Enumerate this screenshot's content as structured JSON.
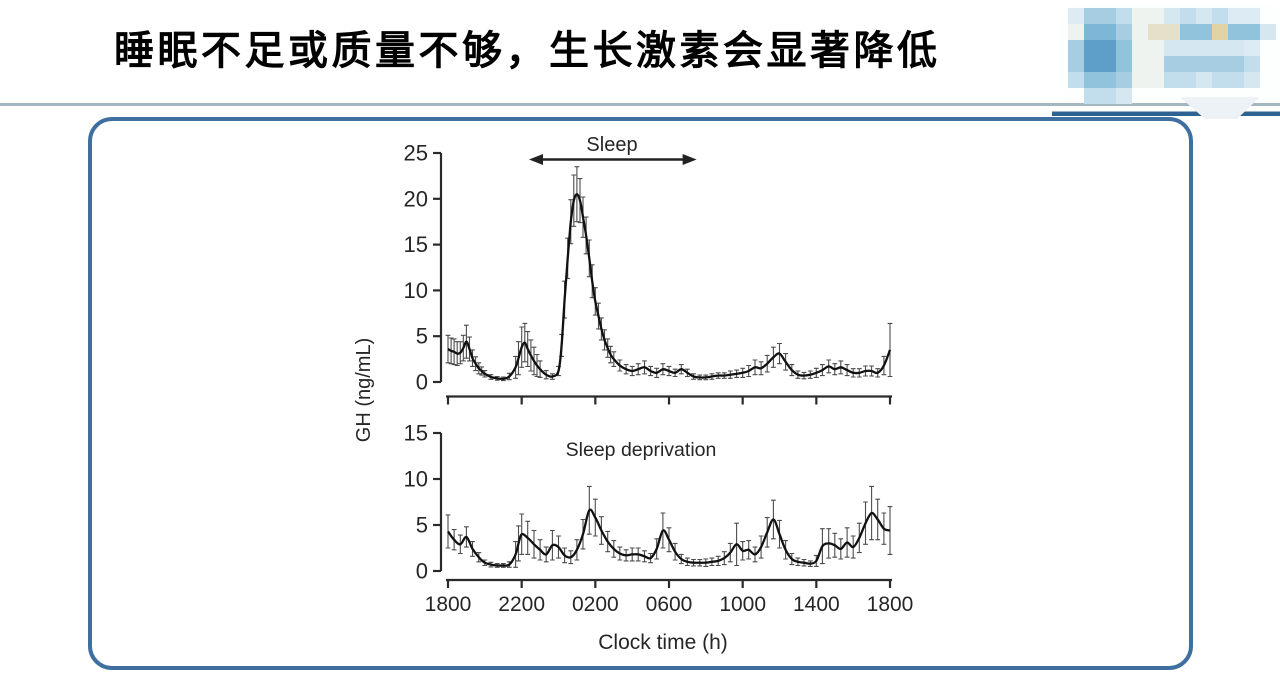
{
  "title": {
    "text": "睡眠不足或质量不够，生长激素会显著降低"
  },
  "chart_data": {
    "type": "line",
    "xlabel": "Clock time (h)",
    "ylabel": "GH (ng/mL)",
    "x_ticks": [
      "1800",
      "2200",
      "0200",
      "0600",
      "1000",
      "1400",
      "1800"
    ],
    "x_hours": [
      0,
      4,
      8,
      12,
      16,
      20,
      24
    ],
    "grid": false,
    "panels": [
      {
        "name": "sleep",
        "annotation": "Sleep",
        "y_ticks": [
          0,
          5,
          10,
          15,
          20,
          25
        ],
        "ylim": [
          0,
          25
        ],
        "arrow_hours": {
          "from": 4.4,
          "to": 13.5
        },
        "points": [
          [
            0,
            3.6,
            1.5
          ],
          [
            0.17,
            3.4,
            1.4
          ],
          [
            0.33,
            3.3,
            1.4
          ],
          [
            0.5,
            3.1,
            1.3
          ],
          [
            0.67,
            3.2,
            1.2
          ],
          [
            0.83,
            3.7,
            1.4
          ],
          [
            1,
            4.4,
            1.8
          ],
          [
            1.17,
            3.6,
            1.3
          ],
          [
            1.33,
            2.6,
            0.9
          ],
          [
            1.5,
            2,
            0.75
          ],
          [
            1.67,
            1.5,
            0.6
          ],
          [
            1.83,
            1.2,
            0.45
          ],
          [
            2,
            0.9,
            0.35
          ],
          [
            2.33,
            0.55,
            0.25
          ],
          [
            2.67,
            0.4,
            0.2
          ],
          [
            3,
            0.35,
            0.2
          ],
          [
            3.33,
            0.6,
            0.35
          ],
          [
            3.67,
            1.6,
            1.2
          ],
          [
            3.83,
            2.6,
            1.8
          ],
          [
            4,
            3.8,
            2.2
          ],
          [
            4.17,
            4.3,
            2.1
          ],
          [
            4.33,
            3.6,
            1.9
          ],
          [
            4.5,
            2.9,
            1.7
          ],
          [
            4.67,
            2.3,
            1.5
          ],
          [
            4.83,
            1.8,
            1.2
          ],
          [
            5,
            1.4,
            0.9
          ],
          [
            5.33,
            0.8,
            0.45
          ],
          [
            5.67,
            0.6,
            0.3
          ],
          [
            6,
            1.2,
            0.5
          ],
          [
            6.17,
            4,
            1.2
          ],
          [
            6.33,
            9,
            2
          ],
          [
            6.5,
            13.5,
            2.2
          ],
          [
            6.67,
            17.5,
            2.4
          ],
          [
            6.83,
            19.8,
            2.8
          ],
          [
            7,
            20.5,
            3
          ],
          [
            7.17,
            19.8,
            2.4
          ],
          [
            7.33,
            18,
            2.2
          ],
          [
            7.5,
            16,
            2
          ],
          [
            7.67,
            13.5,
            2
          ],
          [
            7.83,
            11,
            1.8
          ],
          [
            8,
            8.8,
            1.5
          ],
          [
            8.17,
            7.2,
            1.4
          ],
          [
            8.33,
            5.8,
            1.2
          ],
          [
            8.5,
            4.6,
            1.1
          ],
          [
            8.67,
            3.7,
            1
          ],
          [
            8.83,
            3,
            0.9
          ],
          [
            9,
            2.5,
            0.8
          ],
          [
            9.33,
            1.8,
            0.6
          ],
          [
            9.67,
            1.4,
            0.5
          ],
          [
            10,
            1.2,
            0.5
          ],
          [
            10.33,
            1.4,
            0.6
          ],
          [
            10.67,
            1.6,
            0.7
          ],
          [
            11,
            1.2,
            0.5
          ],
          [
            11.33,
            1,
            0.5
          ],
          [
            11.67,
            1.4,
            0.6
          ],
          [
            12,
            1.2,
            0.5
          ],
          [
            12.33,
            1,
            0.4
          ],
          [
            12.67,
            1.4,
            0.5
          ],
          [
            13,
            1,
            0.4
          ],
          [
            13.33,
            0.6,
            0.3
          ],
          [
            13.67,
            0.5,
            0.25
          ],
          [
            14,
            0.5,
            0.25
          ],
          [
            14.33,
            0.6,
            0.3
          ],
          [
            14.67,
            0.7,
            0.3
          ],
          [
            15,
            0.7,
            0.3
          ],
          [
            15.33,
            0.8,
            0.4
          ],
          [
            15.67,
            0.9,
            0.4
          ],
          [
            16,
            1,
            0.5
          ],
          [
            16.33,
            1.2,
            0.6
          ],
          [
            16.67,
            1.6,
            0.8
          ],
          [
            17,
            1.5,
            0.7
          ],
          [
            17.33,
            2,
            0.9
          ],
          [
            17.67,
            2.7,
            1.1
          ],
          [
            18,
            3.1,
            1.1
          ],
          [
            18.33,
            2.2,
            0.9
          ],
          [
            18.67,
            1.3,
            0.6
          ],
          [
            19,
            0.8,
            0.4
          ],
          [
            19.33,
            0.7,
            0.35
          ],
          [
            19.67,
            0.8,
            0.4
          ],
          [
            20,
            1,
            0.5
          ],
          [
            20.33,
            1.3,
            0.6
          ],
          [
            20.67,
            1.7,
            0.7
          ],
          [
            21,
            1.4,
            0.6
          ],
          [
            21.33,
            1.6,
            0.7
          ],
          [
            21.67,
            1.3,
            0.6
          ],
          [
            22,
            1,
            0.45
          ],
          [
            22.33,
            1,
            0.45
          ],
          [
            22.67,
            1.2,
            0.55
          ],
          [
            23,
            1.2,
            0.55
          ],
          [
            23.33,
            1,
            0.45
          ],
          [
            23.67,
            1.8,
            1
          ],
          [
            24,
            3.5,
            2.9
          ]
        ]
      },
      {
        "name": "sleep-deprivation",
        "annotation": "Sleep deprivation",
        "y_ticks": [
          0,
          5,
          10,
          15
        ],
        "ylim": [
          0,
          15
        ],
        "points": [
          [
            0,
            4.3,
            1.8
          ],
          [
            0.33,
            3.4,
            1.1
          ],
          [
            0.67,
            2.9,
            1
          ],
          [
            1,
            3.7,
            1.1
          ],
          [
            1.33,
            2.4,
            0.8
          ],
          [
            1.67,
            1.5,
            0.5
          ],
          [
            2,
            0.9,
            0.3
          ],
          [
            2.33,
            0.7,
            0.25
          ],
          [
            2.67,
            0.6,
            0.2
          ],
          [
            3,
            0.6,
            0.2
          ],
          [
            3.33,
            0.7,
            0.3
          ],
          [
            3.67,
            1.8,
            1.4
          ],
          [
            3.83,
            3,
            1.9
          ],
          [
            4,
            4,
            2.2
          ],
          [
            4.33,
            3.6,
            1.8
          ],
          [
            4.67,
            2.9,
            1.5
          ],
          [
            5,
            2.3,
            1.1
          ],
          [
            5.33,
            1.8,
            0.8
          ],
          [
            5.67,
            2.8,
            1.6
          ],
          [
            6,
            2.6,
            1.2
          ],
          [
            6.33,
            1.7,
            0.8
          ],
          [
            6.67,
            1.5,
            0.7
          ],
          [
            7,
            2.3,
            1.1
          ],
          [
            7.33,
            4,
            1.6
          ],
          [
            7.67,
            6.6,
            2.6
          ],
          [
            8,
            5.8,
            2
          ],
          [
            8.33,
            4.4,
            1.5
          ],
          [
            8.67,
            3.2,
            1.1
          ],
          [
            9,
            2.4,
            0.9
          ],
          [
            9.33,
            1.9,
            0.7
          ],
          [
            9.67,
            1.7,
            0.6
          ],
          [
            10,
            1.8,
            0.7
          ],
          [
            10.33,
            1.8,
            0.7
          ],
          [
            10.67,
            1.6,
            0.6
          ],
          [
            11,
            1.4,
            0.5
          ],
          [
            11.33,
            2.4,
            1.1
          ],
          [
            11.67,
            4.4,
            1.9
          ],
          [
            12,
            3.4,
            1.3
          ],
          [
            12.33,
            2.1,
            0.9
          ],
          [
            12.67,
            1.3,
            0.5
          ],
          [
            13,
            1,
            0.4
          ],
          [
            13.33,
            0.9,
            0.35
          ],
          [
            13.67,
            0.9,
            0.35
          ],
          [
            14,
            0.9,
            0.4
          ],
          [
            14.33,
            1,
            0.4
          ],
          [
            14.67,
            1.1,
            0.5
          ],
          [
            15,
            1.4,
            0.7
          ],
          [
            15.33,
            2,
            1
          ],
          [
            15.67,
            2.9,
            2.3
          ],
          [
            16,
            2.2,
            1
          ],
          [
            16.33,
            2.3,
            1
          ],
          [
            16.67,
            1.8,
            0.8
          ],
          [
            17,
            2.6,
            1.2
          ],
          [
            17.33,
            4.2,
            1.6
          ],
          [
            17.67,
            5.6,
            2.1
          ],
          [
            18,
            4,
            1.5
          ],
          [
            18.33,
            2.3,
            1
          ],
          [
            18.67,
            1.3,
            0.6
          ],
          [
            19,
            1,
            0.4
          ],
          [
            19.33,
            0.9,
            0.35
          ],
          [
            19.67,
            0.8,
            0.3
          ],
          [
            20,
            1.1,
            0.6
          ],
          [
            20.33,
            2.7,
            1.9
          ],
          [
            20.67,
            3,
            1.6
          ],
          [
            21,
            2.8,
            1.3
          ],
          [
            21.33,
            2.4,
            1.1
          ],
          [
            21.67,
            3.1,
            1.6
          ],
          [
            22,
            2.6,
            1.2
          ],
          [
            22.33,
            3.6,
            1.6
          ],
          [
            22.67,
            5.2,
            2.3
          ],
          [
            23,
            6.3,
            2.9
          ],
          [
            23.33,
            5.6,
            2.2
          ],
          [
            23.67,
            4.6,
            1.7
          ],
          [
            24,
            4.4,
            2.6
          ]
        ]
      }
    ]
  },
  "logo": {
    "name": "pixelated-watermark",
    "palette": {
      "a": "#dcebf4",
      "b": "#a6cde2",
      "c": "#7db7d7",
      "d": "#5d9fc8",
      "e": "#c2ddec",
      "f": "#eef3ef",
      "g": "#e4e0ca",
      "h": "#e2d3a5",
      "i": "#92c3dd",
      "j": "#d5e8f2",
      "w": "none"
    },
    "rows": [
      "abbeffjejeaaw",
      "fccbfggiihiij",
      "bddiffjjjjjaw",
      "bddiffbbbbbew",
      "eiibffeejeejw",
      "weejwwwwwwwww"
    ],
    "underline_color": "#2e6291",
    "divider_color": "#a3b6c4",
    "box_border_color": "#3e6f9f"
  }
}
